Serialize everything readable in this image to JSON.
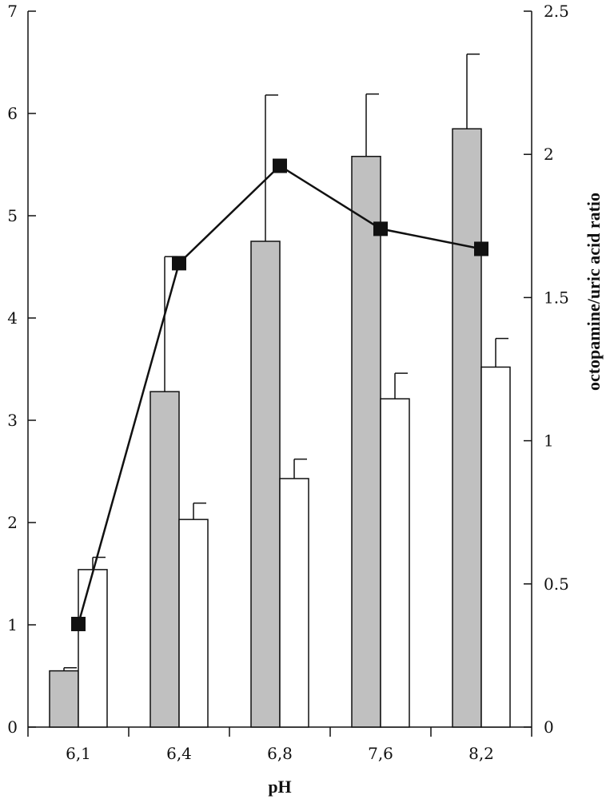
{
  "chart_data": {
    "type": "bar",
    "categories": [
      "6,1",
      "6,4",
      "6,8",
      "7,6",
      "8,2"
    ],
    "xlabel": "pH",
    "ylabel_left": "",
    "ylabel_right": "octopamine/uric acid ratio",
    "ylim_left": [
      0,
      7
    ],
    "yticks_left": [
      "0",
      "1",
      "2",
      "3",
      "4",
      "5",
      "6",
      "7"
    ],
    "ylim_right": [
      0,
      2.5
    ],
    "yticks_right": [
      "0",
      "0.5",
      "1",
      "1.5",
      "2",
      "2.5"
    ],
    "grid": false,
    "series": [
      {
        "values": [
          0.55,
          3.28,
          4.75,
          5.58,
          5.85
        ],
        "errors": [
          0.03,
          1.32,
          1.43,
          0.61,
          0.73
        ],
        "axis": "left",
        "kind": "bar",
        "color": "#c0c0c0"
      },
      {
        "values": [
          1.54,
          2.03,
          2.43,
          3.21,
          3.52
        ],
        "errors": [
          0.12,
          0.16,
          0.19,
          0.25,
          0.28
        ],
        "axis": "left",
        "kind": "bar",
        "color": "#ffffff"
      },
      {
        "values": [
          0.36,
          1.62,
          1.96,
          1.74,
          1.67
        ],
        "axis": "right",
        "kind": "line",
        "marker": "square",
        "color": "#111111"
      }
    ]
  }
}
